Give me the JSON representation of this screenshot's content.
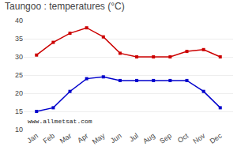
{
  "chart_data": {
    "type": "line",
    "title": "Taungoo : temperatures (°C)",
    "categories": [
      "Jan",
      "Feb",
      "Mar",
      "Apr",
      "May",
      "Jun",
      "Jul",
      "Aug",
      "Sep",
      "Oct",
      "Nov",
      "Dec"
    ],
    "series": [
      {
        "color": "#cc0000",
        "values": [
          30.5,
          34.0,
          36.5,
          38.0,
          35.5,
          31.0,
          30.0,
          30.0,
          30.0,
          31.5,
          32.0,
          30.0
        ]
      },
      {
        "color": "#0000cc",
        "values": [
          15.0,
          16.0,
          20.5,
          24.0,
          24.5,
          23.5,
          23.5,
          23.5,
          23.5,
          23.5,
          20.5,
          16.0
        ]
      }
    ],
    "marker": "square",
    "line_style": "solid",
    "ylim": [
      10,
      40
    ],
    "yticks": [
      10,
      15,
      20,
      25,
      30,
      35,
      40
    ],
    "grid": true,
    "annotations": [
      "www.allmetsat.com"
    ]
  }
}
